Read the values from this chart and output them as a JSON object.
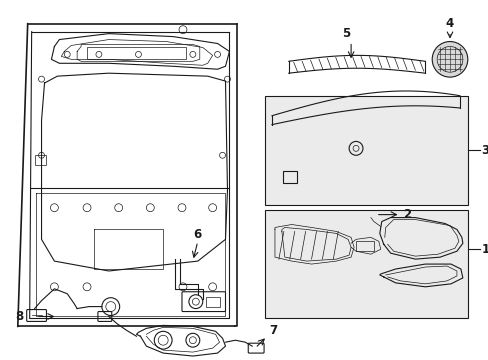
{
  "bg_color": "#ffffff",
  "line_color": "#1a1a1a",
  "figsize": [
    4.89,
    3.6
  ],
  "dpi": 100,
  "gate_bg": "#ffffff",
  "box_bg": "#e8e8e8",
  "lw_main": 1.2,
  "lw_med": 0.8,
  "lw_thin": 0.5,
  "label_fontsize": 8.5
}
